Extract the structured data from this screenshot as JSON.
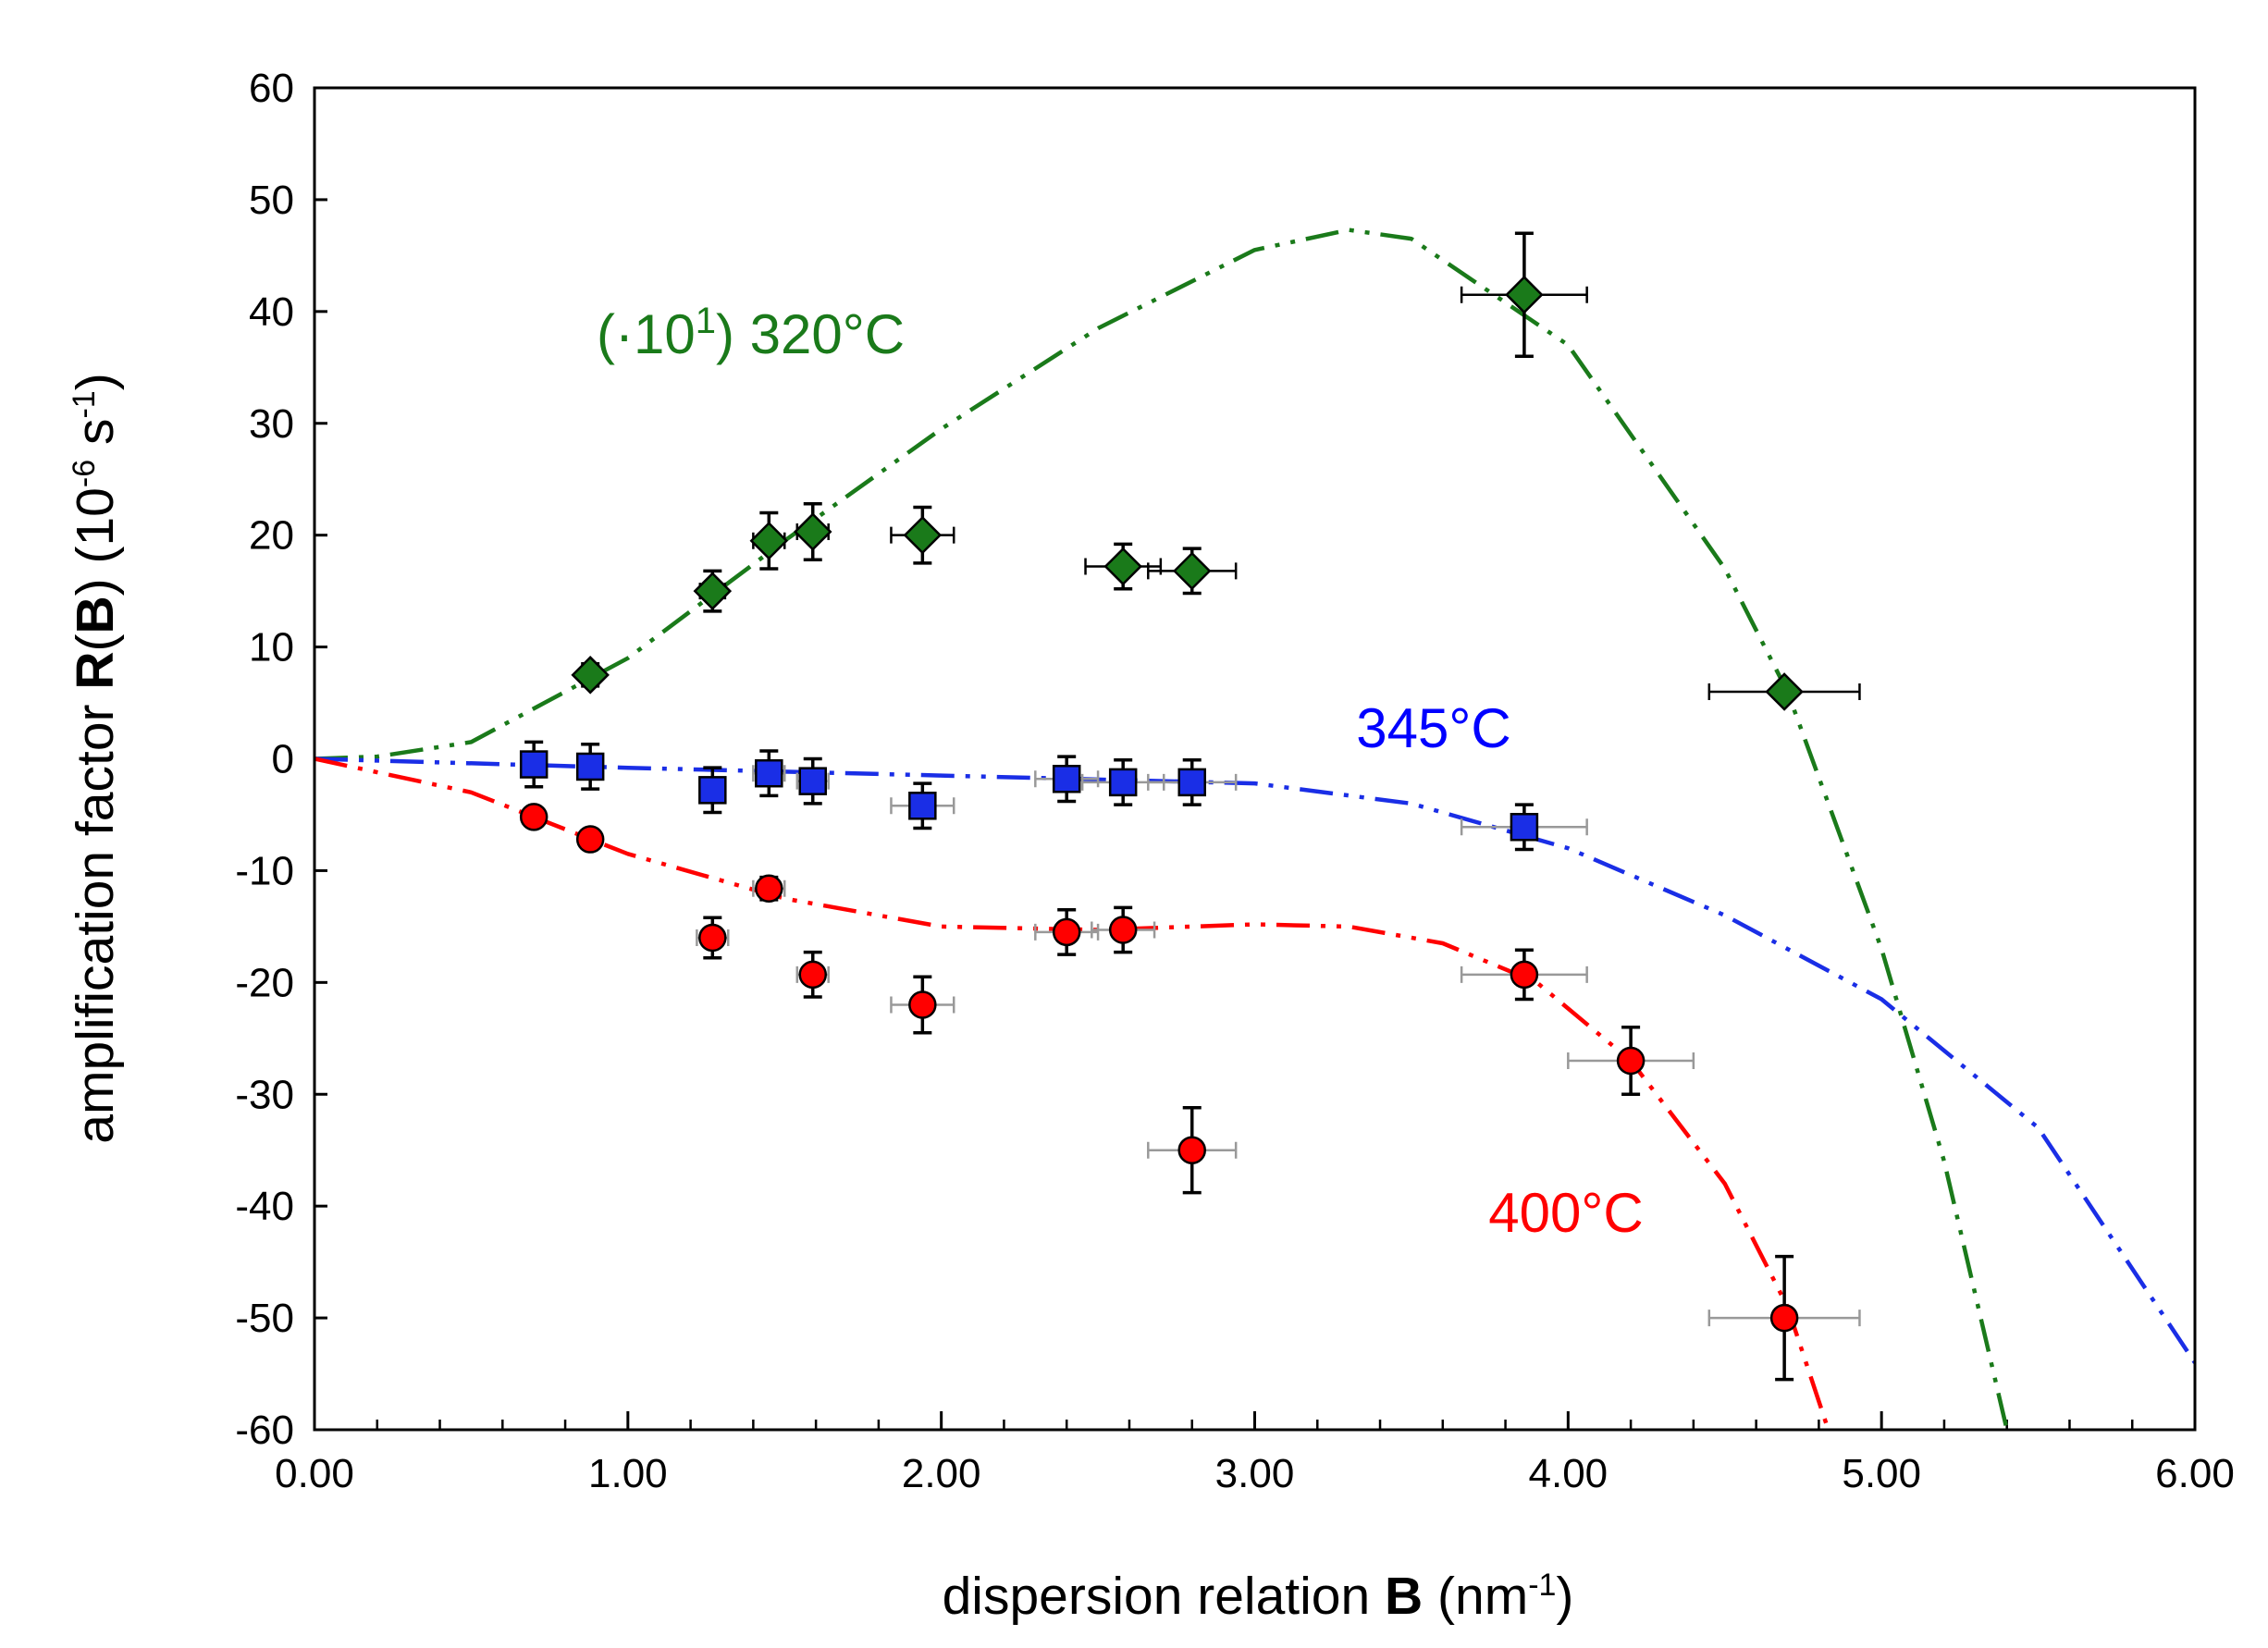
{
  "chart_data": {
    "type": "scatter",
    "xlabel_parts": [
      "dispersion relation ",
      "B",
      " (nm",
      "-1",
      ")"
    ],
    "ylabel_parts": [
      "amplification factor ",
      "R",
      "(",
      "B",
      ") (10",
      "-6",
      " s",
      "-1",
      ")"
    ],
    "annotations": [
      {
        "parts": [
          "(·10",
          "1",
          ") 320°C"
        ],
        "color": "#1a7a1a"
      },
      {
        "parts": [
          "345°C"
        ],
        "color": "#0000ff"
      },
      {
        "parts": [
          "400°C"
        ],
        "color": "#ff0000"
      }
    ],
    "xlim": [
      0,
      6
    ],
    "ylim": [
      -60,
      60
    ],
    "xticks": [
      {
        "value": 0,
        "label": "0.00"
      },
      {
        "value": 1,
        "label": "1.00"
      },
      {
        "value": 2,
        "label": "2.00"
      },
      {
        "value": 3,
        "label": "3.00"
      },
      {
        "value": 4,
        "label": "4.00"
      },
      {
        "value": 5,
        "label": "5.00"
      },
      {
        "value": 6,
        "label": "6.00"
      }
    ],
    "xminorticks": [
      0.2,
      0.4,
      0.6,
      0.8,
      1.2,
      1.4,
      1.6,
      1.8,
      2.2,
      2.4,
      2.6,
      2.8,
      3.2,
      3.4,
      3.6,
      3.8,
      4.2,
      4.4,
      4.6,
      4.8,
      5.2,
      5.4,
      5.6,
      5.8
    ],
    "yticks": [
      -60,
      -50,
      -40,
      -30,
      -20,
      -10,
      0,
      10,
      20,
      30,
      40,
      50,
      60
    ],
    "grid": false,
    "series": [
      {
        "color": "#1a7a1a",
        "marker": "diamond",
        "xerr_color": "#000000",
        "x": [
          0.88,
          1.27,
          1.45,
          1.59,
          1.94,
          2.58,
          2.8,
          3.86,
          4.69
        ],
        "values": [
          7.5,
          15,
          19.5,
          20.3,
          20,
          17.2,
          16.8,
          41.5,
          6
        ],
        "yerr": [
          1,
          1.8,
          2.5,
          2.5,
          2.5,
          2,
          2,
          5.5,
          0.5
        ],
        "xerr": [
          0.03,
          0.04,
          0.05,
          0.05,
          0.1,
          0.12,
          0.14,
          0.2,
          0.24
        ],
        "fit": {
          "x": [
            0,
            0.2,
            0.5,
            1.0,
            1.5,
            2.0,
            2.5,
            3.0,
            3.3,
            3.5,
            4.0,
            4.5,
            4.7,
            5.0,
            5.2,
            5.4
          ],
          "values": [
            0,
            0.2,
            1.5,
            9,
            19.5,
            29.5,
            38.5,
            45.5,
            47.3,
            46.5,
            37,
            17,
            6,
            -17,
            -36,
            -60
          ]
        }
      },
      {
        "color": "#1a2ee6",
        "marker": "square",
        "xerr_color": "#999999",
        "x": [
          0.7,
          0.88,
          1.27,
          1.45,
          1.59,
          1.94,
          2.4,
          2.58,
          2.8,
          3.86
        ],
        "values": [
          -0.5,
          -0.7,
          -2.8,
          -1.3,
          -2,
          -4.2,
          -1.8,
          -2.1,
          -2.1,
          -6.1
        ],
        "yerr": [
          2,
          2,
          2,
          2,
          2,
          2,
          2,
          2,
          2,
          2
        ],
        "xerr": [
          0.03,
          0.03,
          0.04,
          0.05,
          0.05,
          0.1,
          0.1,
          0.13,
          0.14,
          0.2
        ],
        "fit": {
          "x": [
            0,
            1,
            2,
            3,
            3.5,
            4,
            4.5,
            5,
            5.5,
            6
          ],
          "values": [
            0,
            -0.8,
            -1.5,
            -2.2,
            -4,
            -8,
            -14,
            -21.5,
            -33,
            -54
          ]
        }
      },
      {
        "color": "#ff0000",
        "marker": "circle",
        "xerr_color": "#999999",
        "x": [
          0.7,
          0.88,
          1.27,
          1.45,
          1.59,
          1.94,
          2.4,
          2.58,
          2.8,
          3.86,
          4.2,
          4.69
        ],
        "values": [
          -5.2,
          -7.2,
          -16,
          -11.6,
          -19.3,
          -22,
          -15.5,
          -15.3,
          -35,
          -19.3,
          -27,
          -50
        ],
        "yerr": [
          0.5,
          0.5,
          1.8,
          1,
          2,
          2.5,
          2,
          2,
          3.8,
          2.2,
          3,
          5.5
        ],
        "xerr": [
          0.03,
          0.03,
          0.05,
          0.05,
          0.05,
          0.1,
          0.1,
          0.1,
          0.14,
          0.2,
          0.2,
          0.24
        ],
        "fit": {
          "x": [
            0,
            0.5,
            0.7,
            1.0,
            1.5,
            2.0,
            2.5,
            3.0,
            3.3,
            3.6,
            3.9,
            4.2,
            4.5,
            4.7,
            4.83
          ],
          "values": [
            0,
            -3,
            -5.2,
            -8.5,
            -12.5,
            -15,
            -15.3,
            -14.8,
            -15,
            -16.5,
            -20,
            -27,
            -38,
            -49,
            -60
          ]
        }
      }
    ]
  }
}
